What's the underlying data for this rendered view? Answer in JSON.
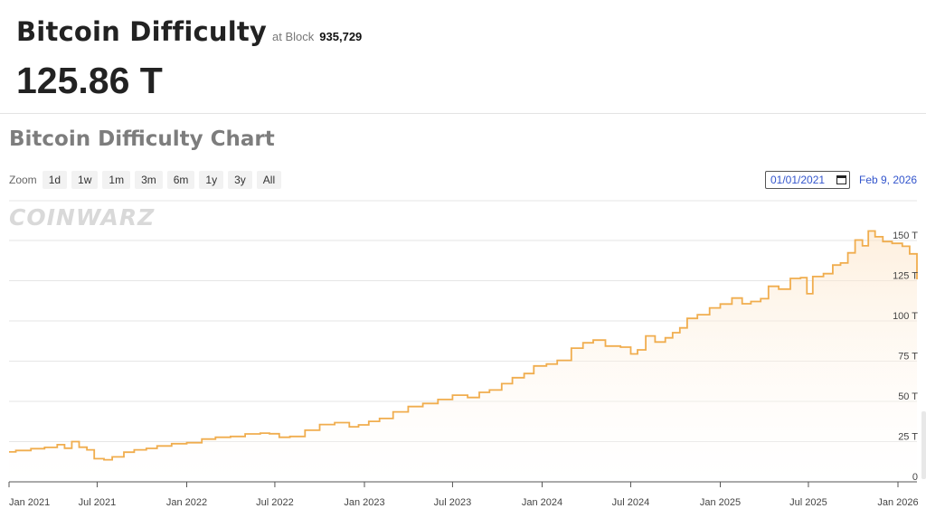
{
  "header": {
    "title": "Bitcoin Difficulty",
    "at_block_label": "at Block",
    "block_number": "935,729",
    "current_value": "125.86 T"
  },
  "chart_section": {
    "title": "Bitcoin Difficulty Chart",
    "watermark": "COINWARZ",
    "zoom_label": "Zoom",
    "zoom_buttons": [
      "1d",
      "1w",
      "1m",
      "3m",
      "6m",
      "1y",
      "3y",
      "All"
    ],
    "date_from": "01/01/2021",
    "date_to": "Feb 9, 2026"
  },
  "colors": {
    "line": "#f0ad4e",
    "fill_top": "#fde3c4",
    "grid": "#e6e6e6"
  },
  "chart_data": {
    "type": "area",
    "title": "Bitcoin Difficulty Chart",
    "xlabel": "",
    "ylabel": "",
    "y_unit": "T",
    "ylim": [
      0,
      160
    ],
    "y_ticks": [
      0,
      25,
      50,
      75,
      100,
      125,
      150
    ],
    "y_tick_labels": [
      "0",
      "25 T",
      "50 T",
      "75 T",
      "100 T",
      "125 T",
      "150 T"
    ],
    "x_range": [
      "2021-01-01",
      "2026-02-09"
    ],
    "x_ticks": [
      "2021-01-01",
      "2021-07-01",
      "2022-01-01",
      "2022-07-01",
      "2023-01-01",
      "2023-07-01",
      "2024-01-01",
      "2024-07-01",
      "2025-01-01",
      "2025-07-01",
      "2026-01-01"
    ],
    "x_tick_labels": [
      "Jan 2021",
      "Jul 2021",
      "Jan 2022",
      "Jul 2022",
      "Jan 2023",
      "Jul 2023",
      "Jan 2024",
      "Jul 2024",
      "Jan 2025",
      "Jul 2025",
      "Jan 2026"
    ],
    "grid": true,
    "series": [
      {
        "points": [
          [
            "2021-01-01",
            18.6
          ],
          [
            "2021-01-15",
            19.5
          ],
          [
            "2021-02-15",
            20.6
          ],
          [
            "2021-03-15",
            21.4
          ],
          [
            "2021-04-10",
            23.1
          ],
          [
            "2021-04-25",
            20.9
          ],
          [
            "2021-05-10",
            25.0
          ],
          [
            "2021-05-25",
            21.5
          ],
          [
            "2021-06-10",
            19.9
          ],
          [
            "2021-06-25",
            14.4
          ],
          [
            "2021-07-15",
            13.7
          ],
          [
            "2021-08-01",
            15.5
          ],
          [
            "2021-08-25",
            18.4
          ],
          [
            "2021-09-15",
            19.9
          ],
          [
            "2021-10-10",
            20.8
          ],
          [
            "2021-11-01",
            22.3
          ],
          [
            "2021-12-01",
            23.7
          ],
          [
            "2022-01-01",
            24.3
          ],
          [
            "2022-02-01",
            26.6
          ],
          [
            "2022-03-01",
            27.7
          ],
          [
            "2022-04-01",
            28.2
          ],
          [
            "2022-05-01",
            29.8
          ],
          [
            "2022-06-01",
            30.3
          ],
          [
            "2022-06-20",
            29.9
          ],
          [
            "2022-07-10",
            27.7
          ],
          [
            "2022-08-01",
            28.2
          ],
          [
            "2022-09-01",
            32.1
          ],
          [
            "2022-10-01",
            35.6
          ],
          [
            "2022-11-01",
            36.8
          ],
          [
            "2022-12-01",
            34.2
          ],
          [
            "2022-12-20",
            35.4
          ],
          [
            "2023-01-10",
            37.6
          ],
          [
            "2023-02-01",
            39.4
          ],
          [
            "2023-03-01",
            43.5
          ],
          [
            "2023-04-01",
            46.8
          ],
          [
            "2023-05-01",
            48.7
          ],
          [
            "2023-06-01",
            51.2
          ],
          [
            "2023-07-01",
            53.9
          ],
          [
            "2023-08-01",
            52.4
          ],
          [
            "2023-08-25",
            55.6
          ],
          [
            "2023-09-15",
            57.1
          ],
          [
            "2023-10-10",
            61.0
          ],
          [
            "2023-11-01",
            64.7
          ],
          [
            "2023-11-25",
            67.3
          ],
          [
            "2023-12-15",
            72.0
          ],
          [
            "2024-01-10",
            73.2
          ],
          [
            "2024-02-01",
            75.5
          ],
          [
            "2024-03-01",
            83.1
          ],
          [
            "2024-03-25",
            86.4
          ],
          [
            "2024-04-15",
            88.1
          ],
          [
            "2024-05-10",
            84.4
          ],
          [
            "2024-06-10",
            83.7
          ],
          [
            "2024-07-01",
            79.5
          ],
          [
            "2024-07-15",
            82.0
          ],
          [
            "2024-08-01",
            90.7
          ],
          [
            "2024-08-20",
            86.9
          ],
          [
            "2024-09-10",
            89.5
          ],
          [
            "2024-09-25",
            92.7
          ],
          [
            "2024-10-10",
            95.7
          ],
          [
            "2024-10-25",
            101.6
          ],
          [
            "2024-11-15",
            103.9
          ],
          [
            "2024-12-10",
            108.1
          ],
          [
            "2025-01-01",
            110.5
          ],
          [
            "2025-01-25",
            114.2
          ],
          [
            "2025-02-15",
            110.7
          ],
          [
            "2025-03-05",
            112.1
          ],
          [
            "2025-03-25",
            113.8
          ],
          [
            "2025-04-10",
            121.5
          ],
          [
            "2025-05-01",
            119.8
          ],
          [
            "2025-05-25",
            126.4
          ],
          [
            "2025-06-15",
            126.9
          ],
          [
            "2025-06-28",
            116.9
          ],
          [
            "2025-07-10",
            127.6
          ],
          [
            "2025-08-01",
            129.4
          ],
          [
            "2025-08-20",
            134.7
          ],
          [
            "2025-09-05",
            136.0
          ],
          [
            "2025-09-20",
            142.3
          ],
          [
            "2025-10-05",
            150.3
          ],
          [
            "2025-10-20",
            146.7
          ],
          [
            "2025-11-01",
            155.9
          ],
          [
            "2025-11-15",
            152.3
          ],
          [
            "2025-12-01",
            149.3
          ],
          [
            "2025-12-20",
            148.2
          ],
          [
            "2026-01-10",
            146.4
          ],
          [
            "2026-01-25",
            141.7
          ],
          [
            "2026-02-09",
            125.86
          ]
        ]
      }
    ]
  }
}
